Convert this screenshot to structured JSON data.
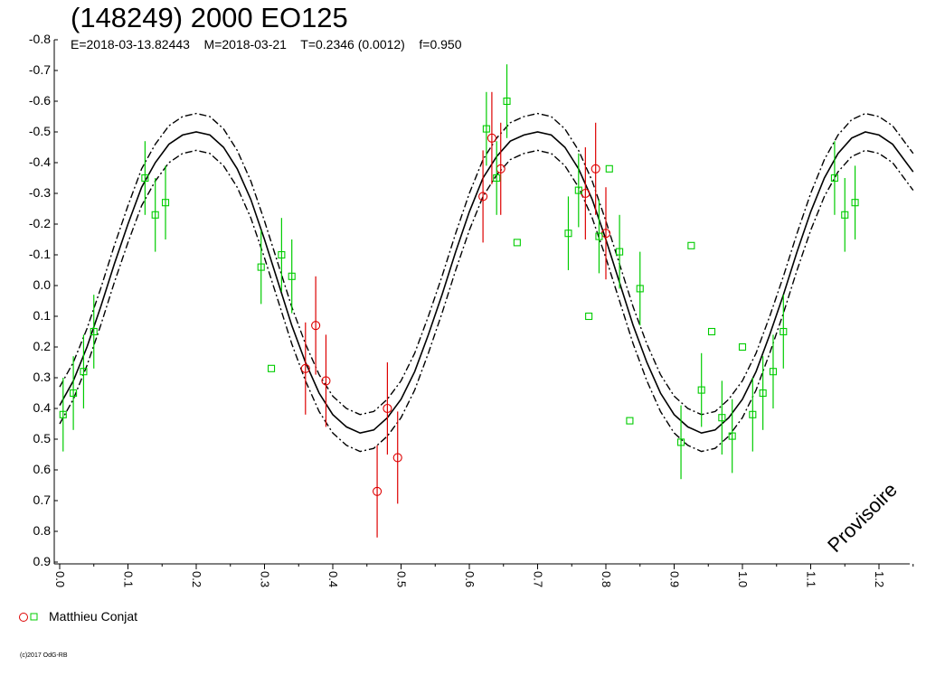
{
  "title": "(148249) 2000 EO125",
  "subtitle": "E=2018-03-13.82443    M=2018-03-21    T=0.2346 (0.0012)    f=0.950",
  "watermark": "Provisoire",
  "copyright": "(c)2017 OdG-RB",
  "legend": {
    "observer": "Matthieu Conjat",
    "colors": {
      "red": "#dd0000",
      "green": "#00cc00"
    }
  },
  "chart_data": {
    "type": "scatter",
    "title": "(148249) 2000 EO125",
    "xlim": [
      0.0,
      1.25
    ],
    "ylim": [
      -0.8,
      0.9
    ],
    "y_inverted": true,
    "x_ticks": [
      0.0,
      0.1,
      0.2,
      0.3,
      0.4,
      0.5,
      0.6,
      0.7,
      0.8,
      0.9,
      1.0,
      1.1,
      1.2
    ],
    "x_tick_labels": [
      "0.0",
      "0.1",
      "0.2",
      "0.3",
      "0.4",
      "0.5",
      "0.6",
      "0.7",
      "0.8",
      "0.9",
      "1.0",
      "1.1",
      "1.2"
    ],
    "y_ticks": [
      -0.8,
      -0.7,
      -0.6,
      -0.5,
      -0.4,
      -0.3,
      -0.2,
      -0.1,
      0.0,
      0.1,
      0.2,
      0.3,
      0.4,
      0.5,
      0.6,
      0.7,
      0.8,
      0.9
    ],
    "y_tick_labels": [
      "-0.8",
      "-0.7",
      "-0.6",
      "-0.5",
      "-0.4",
      "-0.3",
      "-0.2",
      "-0.1",
      "0.0",
      "0.1",
      "0.2",
      "0.3",
      "0.4",
      "0.5",
      "0.6",
      "0.7",
      "0.8",
      "0.9"
    ],
    "grid": false,
    "fit_curve": {
      "points": [
        [
          0.0,
          0.39
        ],
        [
          0.02,
          0.31
        ],
        [
          0.04,
          0.2
        ],
        [
          0.06,
          0.07
        ],
        [
          0.08,
          -0.07
        ],
        [
          0.1,
          -0.2
        ],
        [
          0.12,
          -0.32
        ],
        [
          0.14,
          -0.4
        ],
        [
          0.16,
          -0.46
        ],
        [
          0.18,
          -0.49
        ],
        [
          0.2,
          -0.5
        ],
        [
          0.22,
          -0.49
        ],
        [
          0.24,
          -0.45
        ],
        [
          0.26,
          -0.38
        ],
        [
          0.28,
          -0.28
        ],
        [
          0.3,
          -0.15
        ],
        [
          0.32,
          -0.01
        ],
        [
          0.34,
          0.13
        ],
        [
          0.36,
          0.25
        ],
        [
          0.38,
          0.35
        ],
        [
          0.4,
          0.42
        ],
        [
          0.42,
          0.46
        ],
        [
          0.44,
          0.48
        ],
        [
          0.46,
          0.47
        ],
        [
          0.48,
          0.43
        ],
        [
          0.5,
          0.37
        ],
        [
          0.52,
          0.28
        ],
        [
          0.54,
          0.16
        ],
        [
          0.56,
          0.03
        ],
        [
          0.58,
          -0.11
        ],
        [
          0.6,
          -0.24
        ],
        [
          0.62,
          -0.35
        ],
        [
          0.64,
          -0.42
        ],
        [
          0.66,
          -0.47
        ],
        [
          0.68,
          -0.49
        ],
        [
          0.7,
          -0.5
        ],
        [
          0.72,
          -0.49
        ],
        [
          0.74,
          -0.45
        ],
        [
          0.76,
          -0.38
        ],
        [
          0.78,
          -0.28
        ],
        [
          0.8,
          -0.15
        ],
        [
          0.82,
          -0.01
        ],
        [
          0.84,
          0.13
        ],
        [
          0.86,
          0.25
        ],
        [
          0.88,
          0.35
        ],
        [
          0.9,
          0.42
        ],
        [
          0.92,
          0.46
        ],
        [
          0.94,
          0.48
        ],
        [
          0.96,
          0.47
        ],
        [
          0.98,
          0.43
        ],
        [
          1.0,
          0.37
        ],
        [
          1.02,
          0.28
        ],
        [
          1.04,
          0.16
        ],
        [
          1.06,
          0.03
        ],
        [
          1.08,
          -0.11
        ],
        [
          1.1,
          -0.24
        ],
        [
          1.12,
          -0.35
        ],
        [
          1.14,
          -0.43
        ],
        [
          1.16,
          -0.48
        ],
        [
          1.18,
          -0.5
        ],
        [
          1.2,
          -0.49
        ],
        [
          1.22,
          -0.46
        ],
        [
          1.24,
          -0.4
        ],
        [
          1.25,
          -0.37
        ]
      ],
      "envelope_offset": 0.06
    },
    "series": [
      {
        "name": "Matthieu Conjat",
        "marker": "circle",
        "color": "#dd0000",
        "points": [
          {
            "x": 0.36,
            "y": 0.27,
            "err": 0.15
          },
          {
            "x": 0.375,
            "y": 0.13,
            "err": 0.16
          },
          {
            "x": 0.39,
            "y": 0.31,
            "err": 0.15
          },
          {
            "x": 0.465,
            "y": 0.67,
            "err": 0.15
          },
          {
            "x": 0.48,
            "y": 0.4,
            "err": 0.15
          },
          {
            "x": 0.495,
            "y": 0.56,
            "err": 0.15
          },
          {
            "x": 0.62,
            "y": -0.29,
            "err": 0.15
          },
          {
            "x": 0.633,
            "y": -0.48,
            "err": 0.15
          },
          {
            "x": 0.646,
            "y": -0.38,
            "err": 0.15
          },
          {
            "x": 0.77,
            "y": -0.3,
            "err": 0.15
          },
          {
            "x": 0.785,
            "y": -0.38,
            "err": 0.15
          },
          {
            "x": 0.8,
            "y": -0.17,
            "err": 0.15
          }
        ]
      },
      {
        "name": "Matthieu Conjat",
        "marker": "square",
        "color": "#00cc00",
        "points": [
          {
            "x": 0.005,
            "y": 0.42,
            "err": 0.12
          },
          {
            "x": 0.02,
            "y": 0.35,
            "err": 0.12
          },
          {
            "x": 0.035,
            "y": 0.28,
            "err": 0.12
          },
          {
            "x": 0.05,
            "y": 0.15,
            "err": 0.12
          },
          {
            "x": 0.125,
            "y": -0.35,
            "err": 0.12
          },
          {
            "x": 0.14,
            "y": -0.23,
            "err": 0.12
          },
          {
            "x": 0.155,
            "y": -0.27,
            "err": 0.12
          },
          {
            "x": 0.295,
            "y": -0.06,
            "err": 0.12
          },
          {
            "x": 0.31,
            "y": 0.27,
            "err": 0
          },
          {
            "x": 0.325,
            "y": -0.1,
            "err": 0.12
          },
          {
            "x": 0.34,
            "y": -0.03,
            "err": 0.12
          },
          {
            "x": 0.625,
            "y": -0.51,
            "err": 0.12
          },
          {
            "x": 0.64,
            "y": -0.35,
            "err": 0.12
          },
          {
            "x": 0.655,
            "y": -0.6,
            "err": 0.12
          },
          {
            "x": 0.67,
            "y": -0.14,
            "err": 0
          },
          {
            "x": 0.745,
            "y": -0.17,
            "err": 0.12
          },
          {
            "x": 0.76,
            "y": -0.31,
            "err": 0.12
          },
          {
            "x": 0.775,
            "y": 0.1,
            "err": 0
          },
          {
            "x": 0.79,
            "y": -0.16,
            "err": 0.12
          },
          {
            "x": 0.805,
            "y": -0.38,
            "err": 0
          },
          {
            "x": 0.82,
            "y": -0.11,
            "err": 0.12
          },
          {
            "x": 0.835,
            "y": 0.44,
            "err": 0
          },
          {
            "x": 0.85,
            "y": 0.01,
            "err": 0.12
          },
          {
            "x": 0.91,
            "y": 0.51,
            "err": 0.12
          },
          {
            "x": 0.925,
            "y": -0.13,
            "err": 0
          },
          {
            "x": 0.94,
            "y": 0.34,
            "err": 0.12
          },
          {
            "x": 0.955,
            "y": 0.15,
            "err": 0
          },
          {
            "x": 0.97,
            "y": 0.43,
            "err": 0.12
          },
          {
            "x": 0.985,
            "y": 0.49,
            "err": 0.12
          },
          {
            "x": 1.0,
            "y": 0.2,
            "err": 0
          },
          {
            "x": 1.015,
            "y": 0.42,
            "err": 0.12
          },
          {
            "x": 1.03,
            "y": 0.35,
            "err": 0.12
          },
          {
            "x": 1.045,
            "y": 0.28,
            "err": 0.12
          },
          {
            "x": 1.06,
            "y": 0.15,
            "err": 0.12
          },
          {
            "x": 1.135,
            "y": -0.35,
            "err": 0.12
          },
          {
            "x": 1.15,
            "y": -0.23,
            "err": 0.12
          },
          {
            "x": 1.165,
            "y": -0.27,
            "err": 0.12
          }
        ]
      }
    ]
  }
}
